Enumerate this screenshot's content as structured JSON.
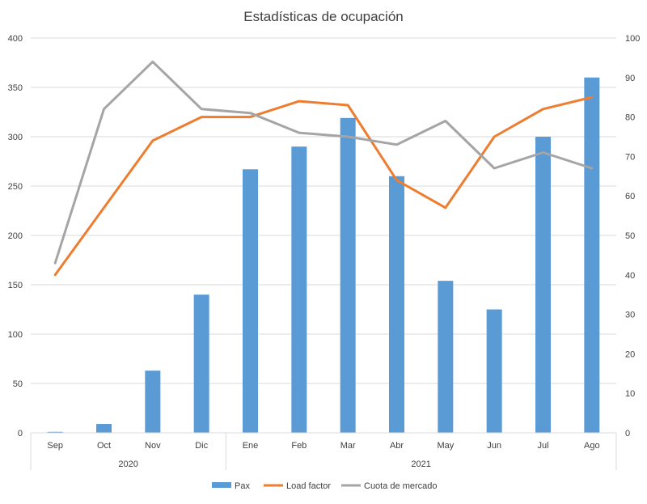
{
  "chart_data": {
    "type": "bar",
    "title": "Estadísticas de ocupación",
    "categories": [
      "Sep",
      "Oct",
      "Nov",
      "Dic",
      "Ene",
      "Feb",
      "Mar",
      "Abr",
      "May",
      "Jun",
      "Jul",
      "Ago"
    ],
    "category_groups": [
      {
        "label": "2020",
        "count": 4
      },
      {
        "label": "2021",
        "count": 8
      }
    ],
    "series": [
      {
        "name": "Pax",
        "type": "bar",
        "axis": "left",
        "color": "#5B9BD5",
        "values": [
          1,
          9,
          63,
          140,
          267,
          290,
          319,
          260,
          154,
          125,
          300,
          360
        ]
      },
      {
        "name": "Load factor",
        "type": "line",
        "axis": "right",
        "color": "#ED7D31",
        "values": [
          40,
          57,
          74,
          80,
          80,
          84,
          83,
          64,
          57,
          75,
          82,
          85
        ]
      },
      {
        "name": "Cuota de mercado",
        "type": "line",
        "axis": "right",
        "color": "#A5A5A5",
        "values": [
          43,
          82,
          94,
          82,
          81,
          76,
          75,
          73,
          79,
          67,
          71,
          67
        ]
      }
    ],
    "y_left": {
      "min": 0,
      "max": 400,
      "step": 50,
      "ticks": [
        "0",
        "50",
        "100",
        "150",
        "200",
        "250",
        "300",
        "350",
        "400"
      ]
    },
    "y_right": {
      "min": 0,
      "max": 100,
      "step": 10,
      "ticks": [
        "0",
        "10",
        "20",
        "30",
        "40",
        "50",
        "60",
        "70",
        "80",
        "90",
        "100"
      ]
    },
    "grid": true,
    "legend_position": "bottom"
  }
}
